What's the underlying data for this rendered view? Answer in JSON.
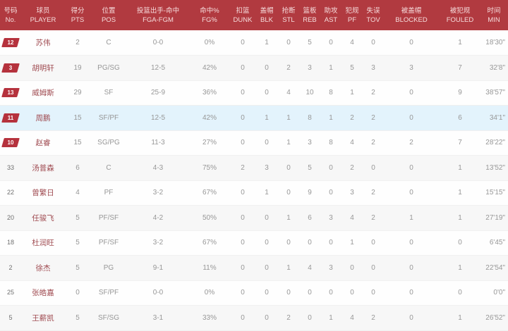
{
  "table_title": "player-box-score",
  "columns": [
    {
      "key": "no",
      "zh": "号码",
      "en": "No."
    },
    {
      "key": "name",
      "zh": "球员",
      "en": "PLAYER"
    },
    {
      "key": "pts",
      "zh": "得分",
      "en": "PTS"
    },
    {
      "key": "pos",
      "zh": "位置",
      "en": "POS"
    },
    {
      "key": "fga_fgm",
      "zh": "投篮出手-命中",
      "en": "FGA-FGM"
    },
    {
      "key": "fg_pct",
      "zh": "命中%",
      "en": "FG%"
    },
    {
      "key": "dunk",
      "zh": "扣篮",
      "en": "DUNK"
    },
    {
      "key": "blk",
      "zh": "盖帽",
      "en": "BLK"
    },
    {
      "key": "stl",
      "zh": "抢断",
      "en": "STL"
    },
    {
      "key": "reb",
      "zh": "篮板",
      "en": "REB"
    },
    {
      "key": "ast",
      "zh": "助攻",
      "en": "AST"
    },
    {
      "key": "pf",
      "zh": "犯规",
      "en": "PF"
    },
    {
      "key": "tov",
      "zh": "失误",
      "en": "TOV"
    },
    {
      "key": "blocked",
      "zh": "被盖帽",
      "en": "BLOCKED"
    },
    {
      "key": "fouled",
      "zh": "被犯规",
      "en": "FOULED"
    },
    {
      "key": "min",
      "zh": "时间",
      "en": "MIN"
    }
  ],
  "rows": [
    {
      "no": "12",
      "starter": true,
      "highlight": false,
      "name": "苏伟",
      "pts": "2",
      "pos": "C",
      "fga_fgm": "0-0",
      "fg_pct": "0%",
      "dunk": "0",
      "blk": "1",
      "stl": "0",
      "reb": "5",
      "ast": "0",
      "pf": "4",
      "tov": "0",
      "blocked": "0",
      "fouled": "1",
      "min": "18'30\""
    },
    {
      "no": "3",
      "starter": true,
      "highlight": false,
      "name": "胡明轩",
      "pts": "19",
      "pos": "PG/SG",
      "fga_fgm": "12-5",
      "fg_pct": "42%",
      "dunk": "0",
      "blk": "0",
      "stl": "2",
      "reb": "3",
      "ast": "1",
      "pf": "5",
      "tov": "3",
      "blocked": "3",
      "fouled": "7",
      "min": "32'8\""
    },
    {
      "no": "13",
      "starter": true,
      "highlight": false,
      "name": "威姆斯",
      "pts": "29",
      "pos": "SF",
      "fga_fgm": "25-9",
      "fg_pct": "36%",
      "dunk": "0",
      "blk": "0",
      "stl": "4",
      "reb": "10",
      "ast": "8",
      "pf": "1",
      "tov": "2",
      "blocked": "0",
      "fouled": "9",
      "min": "38'57\""
    },
    {
      "no": "11",
      "starter": true,
      "highlight": true,
      "name": "周鹏",
      "pts": "15",
      "pos": "SF/PF",
      "fga_fgm": "12-5",
      "fg_pct": "42%",
      "dunk": "0",
      "blk": "1",
      "stl": "1",
      "reb": "8",
      "ast": "1",
      "pf": "2",
      "tov": "2",
      "blocked": "0",
      "fouled": "6",
      "min": "34'1\""
    },
    {
      "no": "10",
      "starter": true,
      "highlight": false,
      "name": "赵睿",
      "pts": "15",
      "pos": "SG/PG",
      "fga_fgm": "11-3",
      "fg_pct": "27%",
      "dunk": "0",
      "blk": "0",
      "stl": "1",
      "reb": "3",
      "ast": "8",
      "pf": "4",
      "tov": "2",
      "blocked": "2",
      "fouled": "7",
      "min": "28'22\""
    },
    {
      "no": "33",
      "starter": false,
      "highlight": false,
      "name": "汤普森",
      "pts": "6",
      "pos": "C",
      "fga_fgm": "4-3",
      "fg_pct": "75%",
      "dunk": "2",
      "blk": "3",
      "stl": "0",
      "reb": "5",
      "ast": "0",
      "pf": "2",
      "tov": "0",
      "blocked": "0",
      "fouled": "1",
      "min": "13'52\""
    },
    {
      "no": "22",
      "starter": false,
      "highlight": false,
      "name": "曾繁日",
      "pts": "4",
      "pos": "PF",
      "fga_fgm": "3-2",
      "fg_pct": "67%",
      "dunk": "0",
      "blk": "1",
      "stl": "0",
      "reb": "9",
      "ast": "0",
      "pf": "3",
      "tov": "2",
      "blocked": "0",
      "fouled": "1",
      "min": "15'15\""
    },
    {
      "no": "20",
      "starter": false,
      "highlight": false,
      "name": "任骏飞",
      "pts": "5",
      "pos": "PF/SF",
      "fga_fgm": "4-2",
      "fg_pct": "50%",
      "dunk": "0",
      "blk": "0",
      "stl": "1",
      "reb": "6",
      "ast": "3",
      "pf": "4",
      "tov": "2",
      "blocked": "1",
      "fouled": "1",
      "min": "27'19\""
    },
    {
      "no": "18",
      "starter": false,
      "highlight": false,
      "name": "杜润旺",
      "pts": "5",
      "pos": "PF/SF",
      "fga_fgm": "3-2",
      "fg_pct": "67%",
      "dunk": "0",
      "blk": "0",
      "stl": "0",
      "reb": "0",
      "ast": "0",
      "pf": "1",
      "tov": "0",
      "blocked": "0",
      "fouled": "0",
      "min": "6'45\""
    },
    {
      "no": "2",
      "starter": false,
      "highlight": false,
      "name": "徐杰",
      "pts": "5",
      "pos": "PG",
      "fga_fgm": "9-1",
      "fg_pct": "11%",
      "dunk": "0",
      "blk": "0",
      "stl": "1",
      "reb": "4",
      "ast": "3",
      "pf": "0",
      "tov": "0",
      "blocked": "0",
      "fouled": "1",
      "min": "22'54\""
    },
    {
      "no": "25",
      "starter": false,
      "highlight": false,
      "name": "张皓嘉",
      "pts": "0",
      "pos": "SF/PF",
      "fga_fgm": "0-0",
      "fg_pct": "0%",
      "dunk": "0",
      "blk": "0",
      "stl": "0",
      "reb": "0",
      "ast": "0",
      "pf": "0",
      "tov": "0",
      "blocked": "0",
      "fouled": "0",
      "min": "0'0\""
    },
    {
      "no": "5",
      "starter": false,
      "highlight": false,
      "name": "王薪凯",
      "pts": "5",
      "pos": "SF/SG",
      "fga_fgm": "3-1",
      "fg_pct": "33%",
      "dunk": "0",
      "blk": "0",
      "stl": "2",
      "reb": "0",
      "ast": "1",
      "pf": "4",
      "tov": "2",
      "blocked": "0",
      "fouled": "1",
      "min": "26'52\""
    }
  ],
  "colors": {
    "header_bg": "#b13a40",
    "header_text": "#f6dcdc",
    "badge_bg": "#b5323d",
    "badge_text": "#ffffff",
    "player_name": "#9f4a50",
    "stat_text": "#979797",
    "row_alt_bg": "#f7f7f7",
    "row_highlight_bg": "#e3f3fc"
  }
}
